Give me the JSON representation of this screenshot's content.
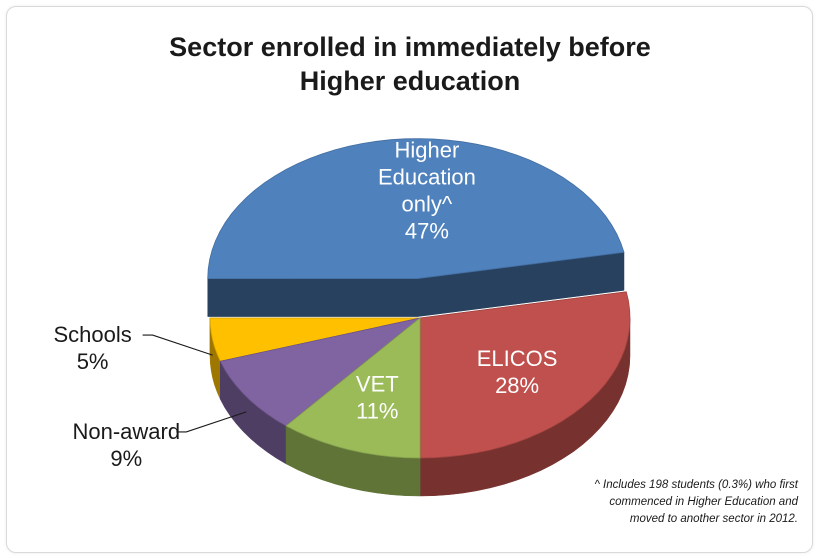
{
  "chart_data": {
    "type": "pie",
    "title_lines": [
      "Sector enrolled in immediately before",
      "Higher education"
    ],
    "slices": [
      {
        "label_lines": [
          "Higher",
          "Education",
          "only^"
        ],
        "value": 47,
        "value_label": "47%",
        "color": "#4f81bd",
        "exploded": true
      },
      {
        "label_lines": [
          "ELICOS"
        ],
        "value": 28,
        "value_label": "28%",
        "color": "#c0504d",
        "exploded": false
      },
      {
        "label_lines": [
          "VET"
        ],
        "value": 11,
        "value_label": "11%",
        "color": "#9bbb59",
        "exploded": false
      },
      {
        "label_lines": [
          "Non-award"
        ],
        "value": 9,
        "value_label": "9%",
        "color": "#8064a2",
        "exploded": false
      },
      {
        "label_lines": [
          "Schools"
        ],
        "value": 5,
        "value_label": "5%",
        "color": "#ffc000",
        "exploded": false
      }
    ],
    "footnote_lines": [
      "^ Includes 198 students (0.3%) who first",
      "commenced in Higher Education and",
      "moved to another sector in 2012."
    ],
    "style": "3d-exploded-pie"
  }
}
